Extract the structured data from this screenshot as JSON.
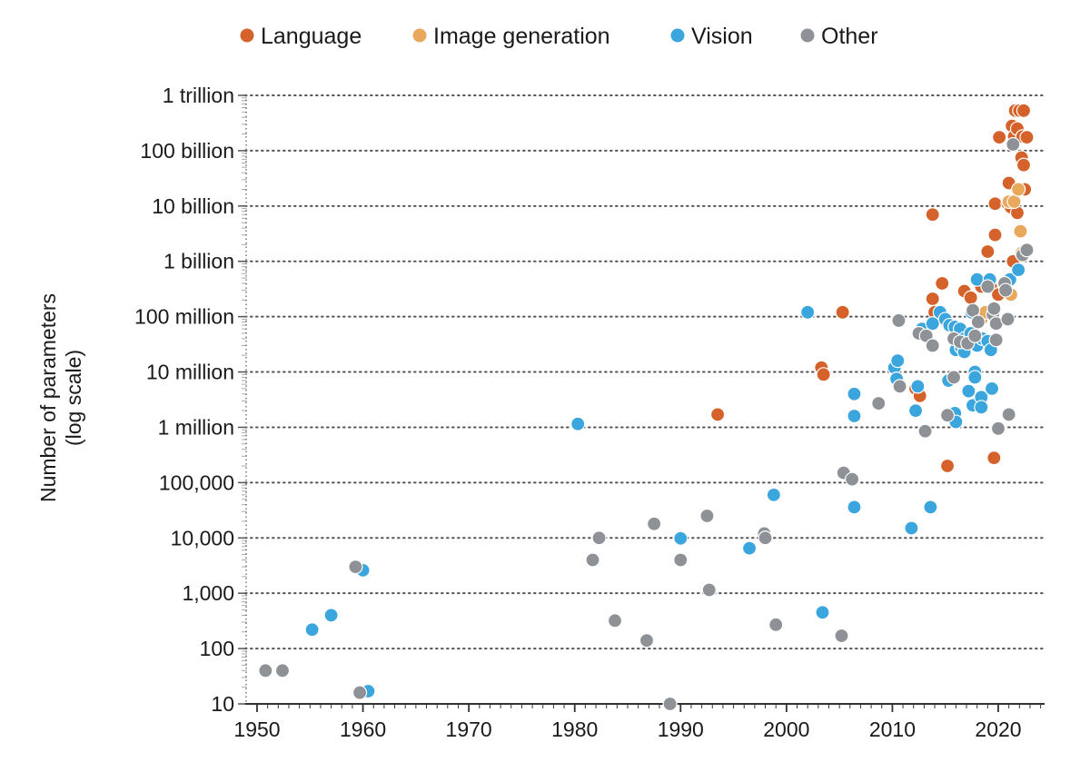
{
  "chart_data": {
    "type": "scatter",
    "ylabel": "Number of parameters",
    "ylabel_note": "(log scale)",
    "yscale": "log",
    "xlim": [
      1950,
      2024
    ],
    "ylim": [
      10,
      1000000000000
    ],
    "x_ticks": [
      1950,
      1960,
      1970,
      1980,
      1990,
      2000,
      2010,
      2020
    ],
    "x_tick_labels": [
      "1950",
      "1960",
      "1970",
      "1980",
      "1990",
      "2000",
      "2010",
      "2020"
    ],
    "y_ticks": [
      10,
      100,
      1000,
      10000,
      100000,
      1000000,
      10000000,
      100000000,
      1000000000,
      10000000000,
      100000000000,
      1000000000000
    ],
    "y_tick_labels": [
      "10",
      "100",
      "1,000",
      "10,000",
      "100,000",
      "1 million",
      "10 million",
      "100 million",
      "1 billion",
      "10 billion",
      "100 billion",
      "1 trillion"
    ],
    "grid": "horizontal dotted",
    "legend_position": "top",
    "series": [
      {
        "name": "Language",
        "color": "#d4622a",
        "points": [
          [
            1993.5,
            1700000
          ],
          [
            2003.3,
            12000000
          ],
          [
            2003.5,
            9000000
          ],
          [
            2005.3,
            120000000
          ],
          [
            2012.2,
            5000000
          ],
          [
            2012.6,
            3700000
          ],
          [
            2013.8,
            7000000000
          ],
          [
            2013.8,
            210000000
          ],
          [
            2014.0,
            120000000
          ],
          [
            2014.7,
            400000000
          ],
          [
            2015.2,
            200000
          ],
          [
            2016.8,
            290000000
          ],
          [
            2017.4,
            220000000
          ],
          [
            2018.4,
            350000000
          ],
          [
            2019.0,
            1500000000
          ],
          [
            2019.3,
            340000000
          ],
          [
            2019.6,
            280000
          ],
          [
            2019.7,
            11000000000
          ],
          [
            2019.7,
            3000000000
          ],
          [
            2020.0,
            250000000
          ],
          [
            2020.1,
            175000000000
          ],
          [
            2020.9,
            11000000000
          ],
          [
            2021.0,
            26000000000
          ],
          [
            2021.2,
            9500000000
          ],
          [
            2021.3,
            280000000000
          ],
          [
            2021.4,
            1000000000
          ],
          [
            2021.5,
            180000000000
          ],
          [
            2021.6,
            530000000000
          ],
          [
            2021.8,
            250000000000
          ],
          [
            2021.8,
            7500000000
          ],
          [
            2022.0,
            530000000000
          ],
          [
            2022.2,
            75000000000
          ],
          [
            2022.3,
            180000000000
          ],
          [
            2022.4,
            55000000000
          ],
          [
            2022.4,
            530000000000
          ],
          [
            2022.5,
            20000000000
          ],
          [
            2022.7,
            175000000000
          ]
        ]
      },
      {
        "name": "Image generation",
        "color": "#e9a95c",
        "points": [
          [
            2018.4,
            90000000
          ],
          [
            2018.8,
            120000000
          ],
          [
            2021.0,
            12000000000
          ],
          [
            2021.2,
            250000000
          ],
          [
            2021.5,
            12000000000
          ],
          [
            2021.9,
            20000000000
          ],
          [
            2022.1,
            3500000000
          ],
          [
            2022.2,
            1400000000
          ]
        ]
      },
      {
        "name": "Vision",
        "color": "#3aa6dd",
        "points": [
          [
            1955.2,
            220
          ],
          [
            1957.0,
            400
          ],
          [
            1960.0,
            2600
          ],
          [
            1960.5,
            17
          ],
          [
            1980.3,
            1150000
          ],
          [
            1990.0,
            9800
          ],
          [
            1996.5,
            6500
          ],
          [
            1998.8,
            60000
          ],
          [
            2002.0,
            120000000
          ],
          [
            2003.4,
            450
          ],
          [
            2006.4,
            4000000
          ],
          [
            2006.4,
            1600000
          ],
          [
            2006.4,
            36000
          ],
          [
            2010.2,
            12000000
          ],
          [
            2010.5,
            16000000
          ],
          [
            2010.4,
            7500000
          ],
          [
            2011.8,
            15000
          ],
          [
            2012.2,
            2000000
          ],
          [
            2012.4,
            5500000
          ],
          [
            2012.8,
            60000000
          ],
          [
            2013.6,
            36000
          ],
          [
            2013.8,
            75000000
          ],
          [
            2014.5,
            120000000
          ],
          [
            2015.0,
            90000000
          ],
          [
            2015.3,
            7000000
          ],
          [
            2015.4,
            70000000
          ],
          [
            2015.9,
            65000000
          ],
          [
            2015.9,
            1800000
          ],
          [
            2016.0,
            25000000
          ],
          [
            2016.0,
            1250000
          ],
          [
            2016.4,
            60000000
          ],
          [
            2016.5,
            28000000
          ],
          [
            2016.8,
            40000000
          ],
          [
            2016.8,
            23000000
          ],
          [
            2017.2,
            4500000
          ],
          [
            2017.4,
            50000000
          ],
          [
            2017.5,
            120000000
          ],
          [
            2017.6,
            2500000
          ],
          [
            2017.8,
            10000000
          ],
          [
            2017.8,
            8000000
          ],
          [
            2018.0,
            30000000
          ],
          [
            2018.0,
            470000000
          ],
          [
            2018.4,
            3500000
          ],
          [
            2018.4,
            2300000
          ],
          [
            2018.5,
            40000000
          ],
          [
            2019.0,
            36000000
          ],
          [
            2019.2,
            470000000
          ],
          [
            2019.3,
            25000000
          ],
          [
            2019.4,
            5000000
          ],
          [
            2021.1,
            470000000
          ],
          [
            2021.9,
            700000000
          ]
        ]
      },
      {
        "name": "Other",
        "color": "#8e9196",
        "points": [
          [
            1950.8,
            40
          ],
          [
            1952.4,
            40
          ],
          [
            1959.3,
            3000
          ],
          [
            1959.7,
            16
          ],
          [
            1981.7,
            4000
          ],
          [
            1982.3,
            10000
          ],
          [
            1983.8,
            320
          ],
          [
            1986.8,
            140
          ],
          [
            1987.5,
            18000
          ],
          [
            1989.0,
            10
          ],
          [
            1990.0,
            4000
          ],
          [
            1992.5,
            25000
          ],
          [
            1992.7,
            1150
          ],
          [
            1997.9,
            12000
          ],
          [
            1998.0,
            10000
          ],
          [
            1999.0,
            270
          ],
          [
            2005.2,
            170
          ],
          [
            2005.4,
            150000
          ],
          [
            2006.2,
            115000
          ],
          [
            2008.7,
            2700000
          ],
          [
            2010.6,
            85000000
          ],
          [
            2010.7,
            5500000
          ],
          [
            2012.5,
            50000000
          ],
          [
            2013.1,
            850000
          ],
          [
            2013.2,
            45000000
          ],
          [
            2013.8,
            30000000
          ],
          [
            2015.2,
            1650000
          ],
          [
            2015.8,
            8000000
          ],
          [
            2015.8,
            40000000
          ],
          [
            2016.4,
            35000000
          ],
          [
            2017.1,
            33000000
          ],
          [
            2017.6,
            130000000
          ],
          [
            2017.8,
            45000000
          ],
          [
            2018.1,
            80000000
          ],
          [
            2019.0,
            350000000
          ],
          [
            2019.5,
            110000000
          ],
          [
            2019.6,
            140000000
          ],
          [
            2019.8,
            75000000
          ],
          [
            2019.8,
            38000000
          ],
          [
            2020.0,
            950000
          ],
          [
            2020.6,
            400000000
          ],
          [
            2020.7,
            300000000
          ],
          [
            2020.9,
            90000000
          ],
          [
            2021.0,
            1700000
          ],
          [
            2021.4,
            130000000000
          ],
          [
            2022.3,
            1300000000
          ],
          [
            2022.7,
            1600000000
          ]
        ]
      }
    ]
  }
}
